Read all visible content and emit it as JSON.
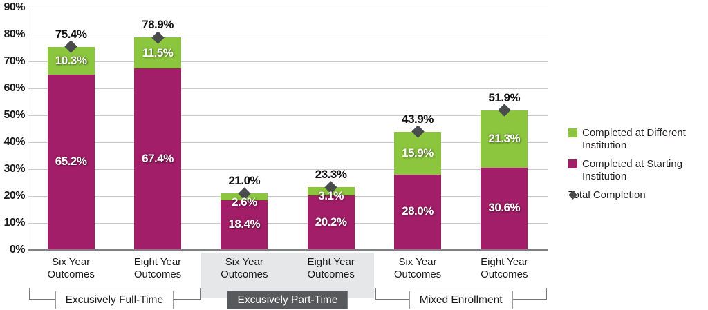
{
  "chart_data": {
    "type": "bar",
    "subtype": "stacked",
    "title": "",
    "categories": [
      "Six Year\nOutcomes",
      "Eight Year\nOutcomes",
      "Six Year\nOutcomes",
      "Eight Year\nOutcomes",
      "Six Year\nOutcomes",
      "Eight Year\nOutcomes"
    ],
    "groups": [
      {
        "label": "Excusively Full-Time",
        "span": [
          0,
          1
        ],
        "highlighted": false
      },
      {
        "label": "Excusively Part-Time",
        "span": [
          2,
          3
        ],
        "highlighted": true
      },
      {
        "label": "Mixed Enrollment",
        "span": [
          4,
          5
        ],
        "highlighted": false
      }
    ],
    "series": [
      {
        "name": "Completed at Starting Institution",
        "color": "#A21E68",
        "values": [
          65.2,
          67.4,
          18.4,
          20.2,
          28.0,
          30.6
        ]
      },
      {
        "name": "Completed at Different Institution",
        "color": "#8CC63E",
        "values": [
          10.3,
          11.5,
          2.6,
          3.1,
          15.9,
          21.3
        ]
      },
      {
        "name": "Total Completion",
        "marker": "diamond",
        "color": "#4A4B4D",
        "values": [
          75.4,
          78.9,
          21.0,
          23.3,
          43.9,
          51.9
        ]
      }
    ],
    "legend_items": [
      {
        "swatch": "square",
        "color": "#8CC63E",
        "label": "Completed at Different\nInstitution"
      },
      {
        "swatch": "square",
        "color": "#A21E68",
        "label": "Completed at Starting\nInstitution"
      },
      {
        "swatch": "diamond",
        "color": "#4A4B4D",
        "label": "Total Completion"
      }
    ],
    "ylim": [
      0,
      90
    ],
    "ytick_step": 10,
    "ytick_suffix": "%",
    "yticks": [
      "0%",
      "10%",
      "20%",
      "30%",
      "40%",
      "50%",
      "60%",
      "70%",
      "80%",
      "90%"
    ],
    "grid": true,
    "legend_position": "right",
    "colors": {
      "grid": "#C9CACB",
      "axis": "#808184",
      "shaded_panel": "#E6E7E8",
      "dark_group_box": "#58595B",
      "text": "#1A1A1A"
    }
  }
}
